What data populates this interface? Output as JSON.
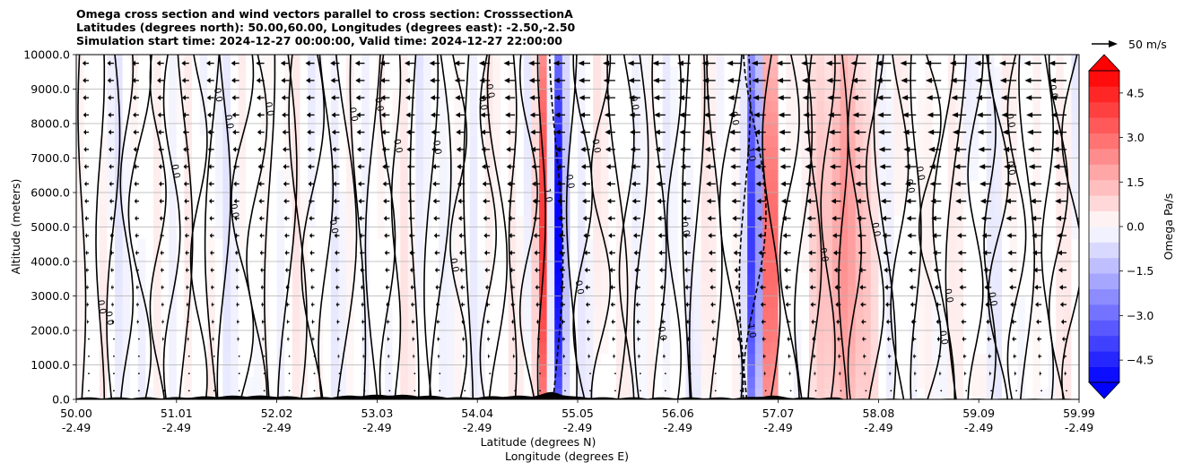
{
  "chart_data": {
    "type": "heatmap",
    "title_lines": [
      "Omega cross section and wind vectors parallel to cross section: CrosssectionA",
      "Latitudes (degrees north): 50.00,60.00, Longitudes (degrees east): -2.50,-2.50",
      "Simulation start time: 2024-12-27 00:00:00, Valid time: 2024-12-27 22:00:00"
    ],
    "ylabel": "Altitude (meters)",
    "xlabel_lines": [
      "Latitude (degrees N)",
      "Longitude (degrees E)"
    ],
    "xlim": [
      50.0,
      59.99
    ],
    "ylim": [
      0,
      10000
    ],
    "x_ticks": [
      {
        "lat": "50.00",
        "lon": "-2.49"
      },
      {
        "lat": "51.01",
        "lon": "-2.49"
      },
      {
        "lat": "52.02",
        "lon": "-2.49"
      },
      {
        "lat": "53.03",
        "lon": "-2.49"
      },
      {
        "lat": "54.04",
        "lon": "-2.49"
      },
      {
        "lat": "55.05",
        "lon": "-2.49"
      },
      {
        "lat": "56.06",
        "lon": "-2.49"
      },
      {
        "lat": "57.07",
        "lon": "-2.49"
      },
      {
        "lat": "58.08",
        "lon": "-2.49"
      },
      {
        "lat": "59.09",
        "lon": "-2.49"
      },
      {
        "lat": "59.99",
        "lon": "-2.49"
      }
    ],
    "y_ticks": [
      "0.0",
      "1000.0",
      "2000.0",
      "3000.0",
      "4000.0",
      "5000.0",
      "6000.0",
      "7000.0",
      "8000.0",
      "9000.0",
      "10000.0"
    ],
    "grid": "horizontal",
    "colorbar": {
      "label": "Omega Pa/s",
      "range": [
        -5.25,
        5.25
      ],
      "ticks": [
        "4.5",
        "3.0",
        "1.5",
        "0.0",
        "−1.5",
        "−3.0",
        "−4.5"
      ],
      "tick_values": [
        4.5,
        3.0,
        1.5,
        0.0,
        -1.5,
        -3.0,
        -4.5
      ],
      "extend": "both",
      "colors": {
        "negative": "#0000ff",
        "zero": "#ffffff",
        "positive": "#ff0000"
      }
    },
    "quiver_key": "50 m/s",
    "contour_labels": [
      "0.0",
      "1.0",
      "-1.0",
      "2.0",
      "-2.0"
    ],
    "features": [
      {
        "name": "strong-ascent-band",
        "lat": 54.8,
        "omega_min": -5.0
      },
      {
        "name": "strong-descent-band",
        "lat": 54.65,
        "omega_max": 4.0
      },
      {
        "name": "strong-ascent-band",
        "lat": 56.75,
        "omega_min": -4.5
      },
      {
        "name": "strong-descent-band",
        "lat": 56.92,
        "omega_max": 4.5
      },
      {
        "name": "descent-region",
        "lat": 57.65,
        "omega_max": 2.0
      }
    ],
    "wind_vectors": {
      "direction": "southward",
      "max_speed_ms": 35,
      "surface_speed_ms": 0
    }
  }
}
